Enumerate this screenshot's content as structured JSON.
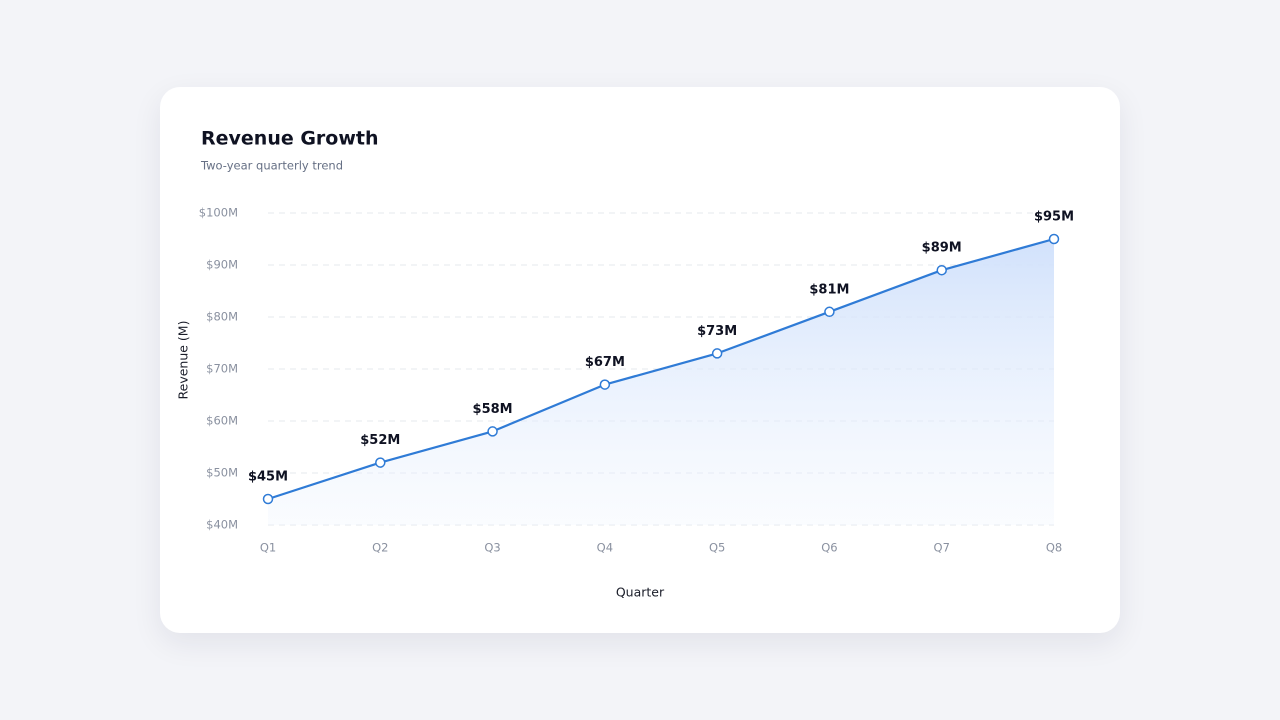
{
  "chart_data": {
    "type": "line",
    "title": "Revenue Growth",
    "subtitle": "Two-year quarterly trend",
    "x_label": "Quarter",
    "y_label": "Revenue (M)",
    "categories": [
      "Q1",
      "Q2",
      "Q3",
      "Q4",
      "Q5",
      "Q6",
      "Q7",
      "Q8"
    ],
    "values": [
      45,
      52,
      58,
      67,
      73,
      81,
      89,
      95
    ],
    "value_labels": [
      "$45M",
      "$52M",
      "$58M",
      "$67M",
      "$73M",
      "$81M",
      "$89M",
      "$95M"
    ],
    "color": "#2f7bd6",
    "ylim": [
      40,
      100
    ],
    "yticks": [
      {
        "value": 40,
        "label": "$40M"
      },
      {
        "value": 50,
        "label": "$50M"
      },
      {
        "value": 60,
        "label": "$60M"
      },
      {
        "value": 70,
        "label": "$70M"
      },
      {
        "value": 80,
        "label": "$80M"
      },
      {
        "value": 90,
        "label": "$90M"
      },
      {
        "value": 100,
        "label": "$100M"
      }
    ],
    "grid": true
  }
}
